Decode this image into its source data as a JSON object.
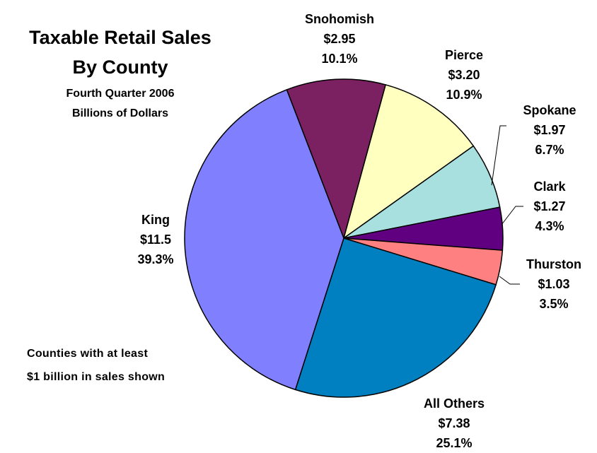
{
  "chart_data": {
    "type": "pie",
    "title": "Taxable Retail Sales",
    "title_line2": "By County",
    "subtitle": "Fourth Quarter 2006",
    "subtitle_line2": "Billions of Dollars",
    "note_line1": "Counties with at least",
    "note_line2": "$1 billion in sales shown",
    "slices": [
      {
        "name": "Snohomish",
        "value": 2.95,
        "value_label": "$2.95",
        "percent_label": "10.1%",
        "color": "#7b2060"
      },
      {
        "name": "Pierce",
        "value": 3.2,
        "value_label": "$3.20",
        "percent_label": "10.9%",
        "color": "#ffffc0"
      },
      {
        "name": "Spokane",
        "value": 1.97,
        "value_label": "$1.97",
        "percent_label": "6.7%",
        "color": "#a8e0e0"
      },
      {
        "name": "Clark",
        "value": 1.27,
        "value_label": "$1.27",
        "percent_label": "4.3%",
        "color": "#600080"
      },
      {
        "name": "Thurston",
        "value": 1.03,
        "value_label": "$1.03",
        "percent_label": "3.5%",
        "color": "#ff8080"
      },
      {
        "name": "All Others",
        "value": 7.38,
        "value_label": "$7.38",
        "percent_label": "25.1%",
        "color": "#0080c0"
      },
      {
        "name": "King",
        "value": 11.5,
        "value_label": "$11.5",
        "percent_label": "39.3%",
        "color": "#8080ff"
      }
    ]
  }
}
